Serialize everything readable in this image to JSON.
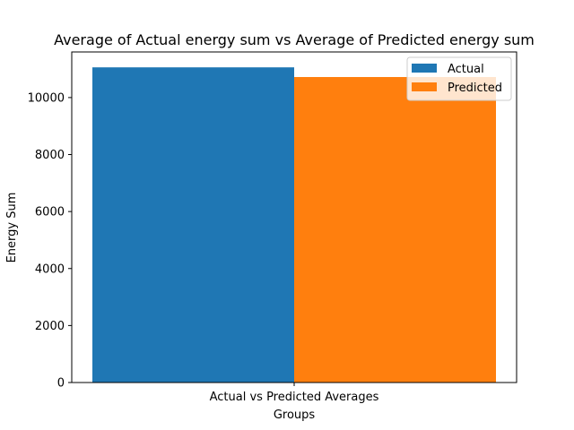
{
  "chart_data": {
    "type": "bar",
    "title": "Average of Actual energy sum vs Average of Predicted energy sum",
    "xlabel": "Groups",
    "ylabel": "Energy Sum",
    "categories": [
      "Actual vs Predicted Averages"
    ],
    "series": [
      {
        "name": "Actual",
        "values": [
          11060
        ],
        "color": "#1f77b4"
      },
      {
        "name": "Predicted",
        "values": [
          10720
        ],
        "color": "#ff7f0e"
      }
    ],
    "ylim": [
      0,
      11600
    ],
    "yticks": [
      0,
      2000,
      4000,
      6000,
      8000,
      10000
    ],
    "grid": false,
    "legend_position": "top-right"
  }
}
